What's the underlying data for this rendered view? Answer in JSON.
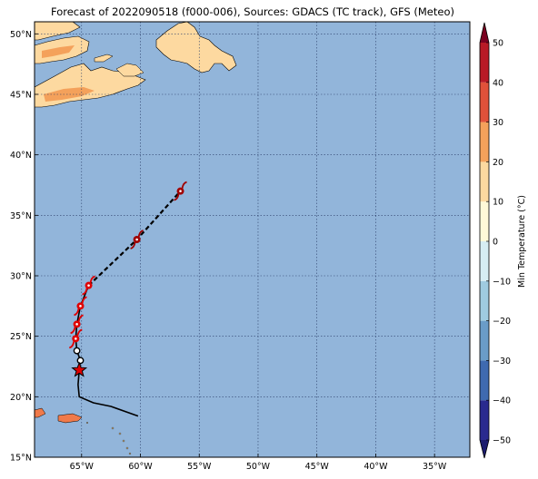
{
  "title": "Forecast of 2022090518 (f000-006), Sources: GDACS (TC track), GFS (Meteo)",
  "colors": {
    "ocean": "#92b5da",
    "land_warm": "#fdd9a0",
    "land_hot": "#f4a15b",
    "land_orange": "#f07a4a",
    "track_red": "#e00000",
    "track_dark_red": "#a00000",
    "grid": "#2b3f6a"
  },
  "map": {
    "lon_range": [
      -69,
      -32
    ],
    "lat_range": [
      15,
      51
    ],
    "lon_ticks": [
      {
        "value": -65,
        "label": "65°W"
      },
      {
        "value": -60,
        "label": "60°W"
      },
      {
        "value": -55,
        "label": "55°W"
      },
      {
        "value": -50,
        "label": "50°W"
      },
      {
        "value": -45,
        "label": "45°W"
      },
      {
        "value": -40,
        "label": "40°W"
      },
      {
        "value": -35,
        "label": "35°W"
      }
    ],
    "lat_ticks": [
      {
        "value": 15,
        "label": "15°N"
      },
      {
        "value": 20,
        "label": "20°N"
      },
      {
        "value": 25,
        "label": "25°N"
      },
      {
        "value": 30,
        "label": "30°N"
      },
      {
        "value": 35,
        "label": "35°N"
      },
      {
        "value": 40,
        "label": "40°N"
      },
      {
        "value": 45,
        "label": "45°N"
      },
      {
        "value": 50,
        "label": "50°N"
      }
    ]
  },
  "track": {
    "past": [
      [
        -60.2,
        18.4
      ],
      [
        -62.5,
        19.2
      ],
      [
        -64.0,
        19.5
      ],
      [
        -65.2,
        20.0
      ],
      [
        -65.3,
        21.0
      ],
      [
        -65.2,
        22.2
      ]
    ],
    "forecast_solid": [
      [
        -65.2,
        22.2
      ],
      [
        -65.1,
        23.0
      ],
      [
        -65.4,
        23.8
      ],
      [
        -65.5,
        24.8
      ],
      [
        -65.4,
        26.0
      ],
      [
        -65.1,
        27.5
      ],
      [
        -64.4,
        29.2
      ]
    ],
    "forecast_dashed": [
      [
        -64.4,
        29.2
      ],
      [
        -60.3,
        33.0
      ],
      [
        -56.6,
        37.0
      ]
    ],
    "current_position": [
      -65.2,
      22.2
    ],
    "depression_points": [
      [
        -65.4,
        23.8
      ],
      [
        -65.1,
        23.0
      ]
    ],
    "storm_points": [
      {
        "pos": [
          -65.5,
          24.8
        ],
        "color": "#e00000"
      },
      {
        "pos": [
          -65.4,
          26.0
        ],
        "color": "#e00000"
      },
      {
        "pos": [
          -65.1,
          27.5
        ],
        "color": "#e00000"
      },
      {
        "pos": [
          -64.4,
          29.2
        ],
        "color": "#e00000"
      },
      {
        "pos": [
          -60.3,
          33.0
        ],
        "color": "#a00000"
      },
      {
        "pos": [
          -56.6,
          37.0
        ],
        "color": "#a00000"
      }
    ]
  },
  "colorbar": {
    "label": "Min Temperature (°C)",
    "levels": [
      -50,
      -40,
      -30,
      -20,
      -10,
      0,
      10,
      20,
      30,
      40,
      50
    ],
    "tick_labels": [
      "−50",
      "−40",
      "−30",
      "−20",
      "−10",
      "0",
      "10",
      "20",
      "30",
      "40",
      "50"
    ],
    "bin_colors": [
      "#2a2a8f",
      "#3f6ab0",
      "#6a9cc8",
      "#9fcbe0",
      "#d6edf3",
      "#fff9d8",
      "#fdd9a0",
      "#f4a15b",
      "#e0513a",
      "#b81a26"
    ],
    "under_color": "#1c1c6e",
    "over_color": "#7a0020"
  }
}
